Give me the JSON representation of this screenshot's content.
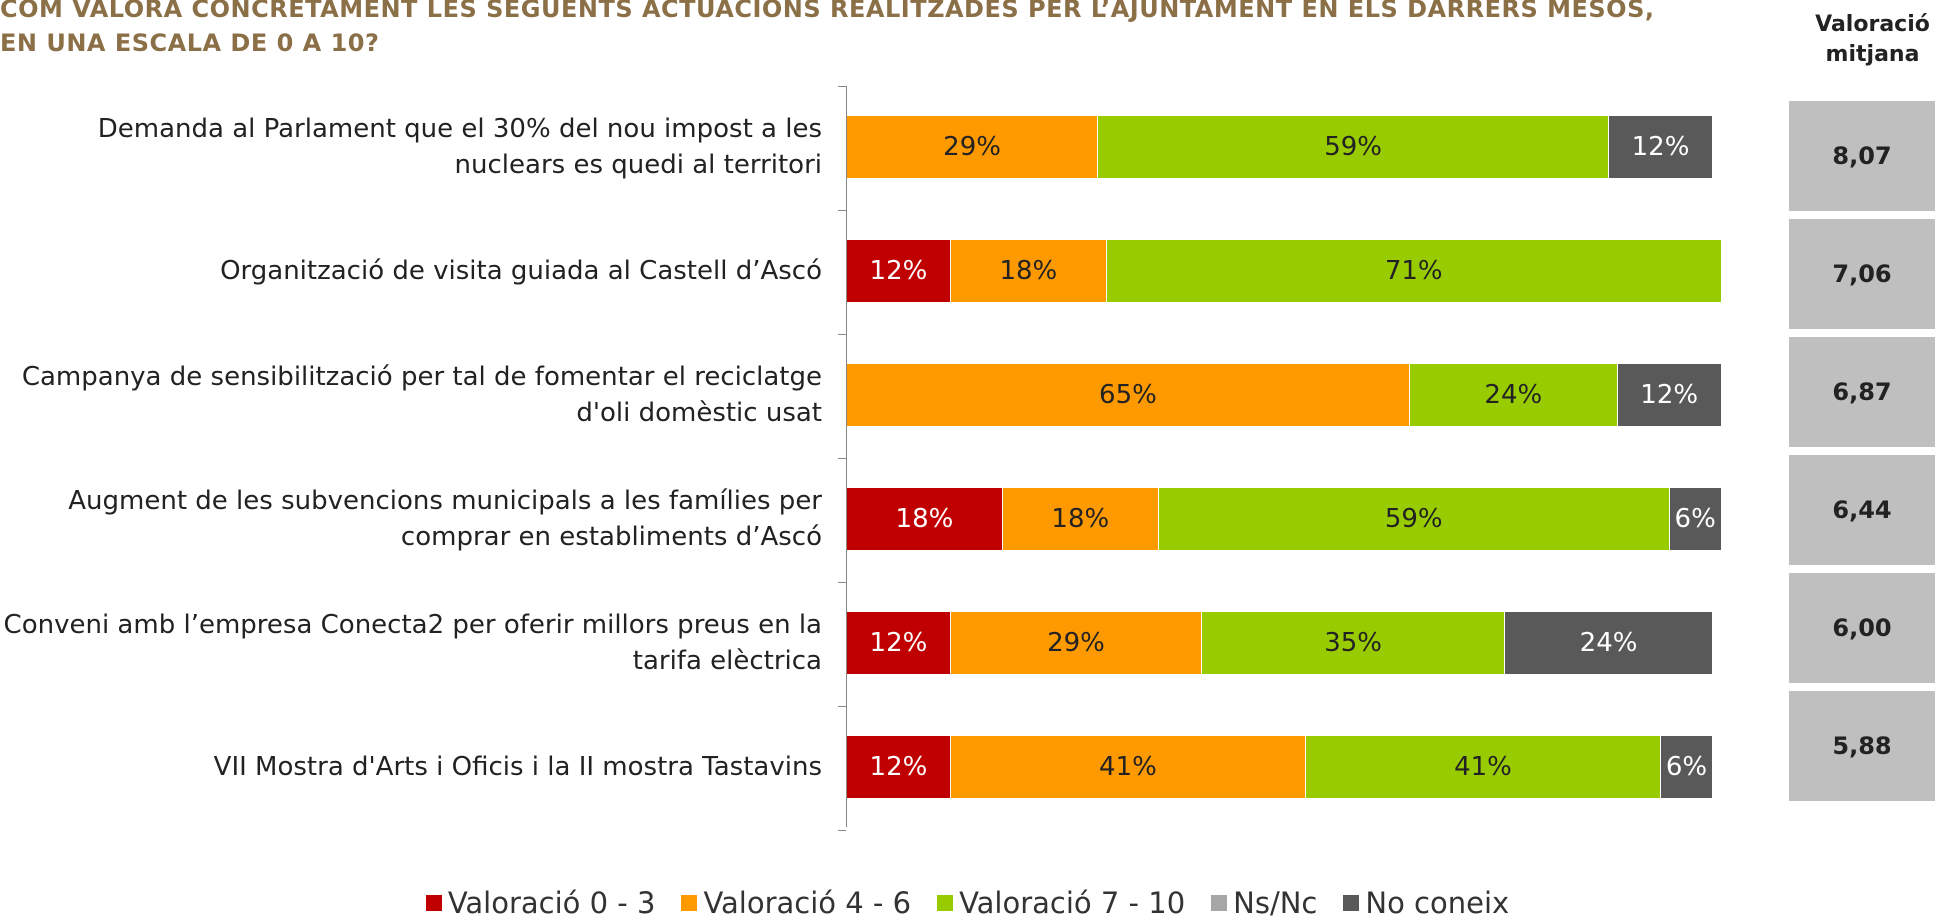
{
  "chart_data": {
    "type": "stacked-bar-horizontal",
    "title": "COM VALORA CONCRETAMENT LES SEGÜENTS ACTUACIONS REALITZADES PER L’AJUNTAMENT EN ELS DARRERS MESOS, EN UNA ESCALA DE 0 A 10?",
    "categories": [
      "Demanda al Parlament que el 30% del nou impost a les nuclears es quedi al territori",
      "Organització de visita guiada al Castell d’Ascó",
      "Campanya de sensibilització per tal de fomentar el reciclatge d'oli domèstic usat",
      "Augment de les subvencions municipals a les famílies per comprar en establiments d’Ascó",
      "Conveni amb l’empresa  Conecta2 per oferir millors preus en la tarifa elèctrica",
      "VII Mostra d'Arts i Oficis i la II mostra Tastavins"
    ],
    "series": [
      {
        "name": "Valoració 0 - 3",
        "color": "#c00000",
        "values": [
          null,
          12,
          null,
          18,
          12,
          12
        ],
        "value_labels": [
          null,
          "12%",
          null,
          "18%",
          "12%",
          "12%"
        ]
      },
      {
        "name": "Valoració 4 - 6",
        "color": "#ff9900",
        "values": [
          29,
          18,
          65,
          18,
          29,
          41
        ],
        "value_labels": [
          "29%",
          "18%",
          "65%",
          "18%",
          "29%",
          "41%"
        ]
      },
      {
        "name": "Valoració  7 - 10",
        "color": "#99cc00",
        "values": [
          59,
          71,
          24,
          59,
          35,
          41
        ],
        "value_labels": [
          "59%",
          "71%",
          "24%",
          "59%",
          "35%",
          "41%"
        ]
      },
      {
        "name": "Ns/Nc",
        "color": "#a6a6a6",
        "values": [
          null,
          null,
          null,
          null,
          null,
          null
        ],
        "value_labels": [
          null,
          null,
          null,
          null,
          null,
          null
        ]
      },
      {
        "name": "No coneix",
        "color": "#595959",
        "values": [
          12,
          null,
          12,
          6,
          24,
          6
        ],
        "value_labels": [
          "12%",
          null,
          "12%",
          "6%",
          "24%",
          "6%"
        ]
      }
    ],
    "averages": {
      "title": "Valoració mitjana",
      "values": [
        8.07,
        7.06,
        6.87,
        6.44,
        6.0,
        5.88
      ],
      "value_labels": [
        "8,07",
        "7,06",
        "6,87",
        "6,44",
        "6,00",
        "5,88"
      ]
    }
  }
}
